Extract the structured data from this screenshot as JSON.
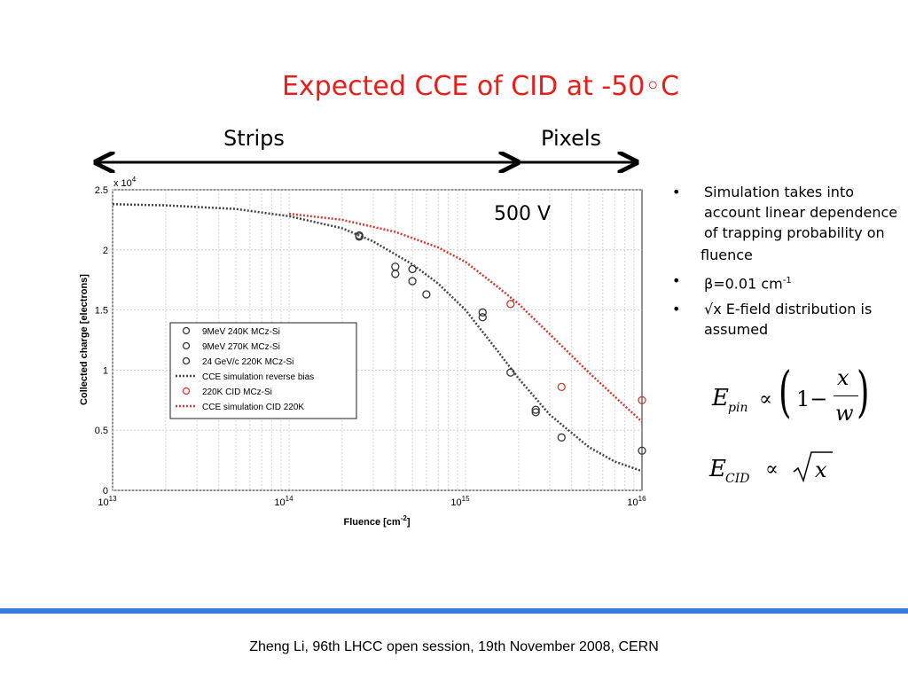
{
  "slide": {
    "title": "Expected CCE of CID at -50◦C",
    "strips_label": "Strips",
    "pixels_label": "Pixels",
    "annotation": "500 V",
    "footer": "Zheng Li, 96th LHCC open session, 19th November 2008, CERN",
    "accent_color": "#3a7be0",
    "title_color": "#e5201a"
  },
  "bullets": [
    {
      "text": "Simulation takes into account linear dependence of trapping probability on",
      "cont": "fluence"
    },
    {
      "text": "β=0.01 cm",
      "sup": "-1"
    },
    {
      "text": "√x E-field distribution is assumed"
    }
  ],
  "equations": {
    "epin_E": "E",
    "epin_sub": "pin",
    "prop": "∝",
    "one": "1−",
    "num": "x",
    "den": "w",
    "ecid_E": "E",
    "ecid_sub": "CID",
    "sqrt_arg": "x"
  },
  "chart_data": {
    "type": "scatter",
    "xlabel": "Fluence [cm",
    "xlabel_sup": "-2",
    "xlabel_end": "]",
    "ylabel": "Collected charge [electrons]",
    "y_multiplier": "x 10",
    "y_multiplier_exp": "4",
    "x_scale": "log",
    "xlim": [
      10000000000000.0,
      1e+16
    ],
    "ylim": [
      0,
      2.5
    ],
    "grid": true,
    "x_ticks": [
      {
        "base": "10",
        "exp": "13",
        "v": 13
      },
      {
        "base": "10",
        "exp": "14",
        "v": 14
      },
      {
        "base": "10",
        "exp": "15",
        "v": 15
      },
      {
        "base": "10",
        "exp": "16",
        "v": 16
      }
    ],
    "y_ticks": [
      "0",
      "0.5",
      "1",
      "1.5",
      "2",
      "2.5"
    ],
    "y_tick_values": [
      0,
      0.5,
      1,
      1.5,
      2,
      2.5
    ],
    "legend_position": "lower-left",
    "series": [
      {
        "name": "9MeV 240K MCz-Si",
        "kind": "points",
        "color": "#333333",
        "points": [
          [
            250000000000000.0,
            2.11
          ],
          [
            400000000000000.0,
            1.8
          ],
          [
            500000000000000.0,
            1.74
          ],
          [
            600000000000000.0,
            1.63
          ],
          [
            1250000000000000.0,
            1.48
          ],
          [
            2500000000000000.0,
            0.67
          ],
          [
            1e+16,
            0.33
          ]
        ]
      },
      {
        "name": "9MeV 270K MCz-Si",
        "kind": "points",
        "color": "#333333",
        "points": [
          [
            250000000000000.0,
            2.12
          ],
          [
            400000000000000.0,
            1.86
          ],
          [
            500000000000000.0,
            1.84
          ],
          [
            1250000000000000.0,
            1.44
          ],
          [
            1800000000000000.0,
            0.98
          ],
          [
            2500000000000000.0,
            0.65
          ]
        ]
      },
      {
        "name": "24 GeV/c 220K MCz-Si",
        "kind": "points",
        "color": "#333333",
        "points": [
          [
            3500000000000000.0,
            0.44
          ]
        ]
      },
      {
        "name": "CCE simulation reverse bias",
        "kind": "line",
        "color": "#444444",
        "points": [
          [
            10000000000000.0,
            2.38
          ],
          [
            20000000000000.0,
            2.37
          ],
          [
            50000000000000.0,
            2.34
          ],
          [
            100000000000000.0,
            2.28
          ],
          [
            200000000000000.0,
            2.18
          ],
          [
            300000000000000.0,
            2.07
          ],
          [
            500000000000000.0,
            1.88
          ],
          [
            700000000000000.0,
            1.72
          ],
          [
            1000000000000000.0,
            1.5
          ],
          [
            1500000000000000.0,
            1.17
          ],
          [
            2000000000000000.0,
            0.93
          ],
          [
            3000000000000000.0,
            0.63
          ],
          [
            5000000000000000.0,
            0.36
          ],
          [
            7000000000000000.0,
            0.24
          ],
          [
            1e+16,
            0.16
          ]
        ]
      },
      {
        "name": "220K CID MCz-Si",
        "kind": "points",
        "color": "#cc3b30",
        "points": [
          [
            1800000000000000.0,
            1.55
          ],
          [
            3500000000000000.0,
            0.86
          ],
          [
            1e+16,
            0.75
          ]
        ]
      },
      {
        "name": "CCE simulation CID 220K",
        "kind": "line",
        "color": "#cc3b30",
        "points": [
          [
            100000000000000.0,
            2.3
          ],
          [
            200000000000000.0,
            2.25
          ],
          [
            400000000000000.0,
            2.15
          ],
          [
            700000000000000.0,
            2.02
          ],
          [
            1000000000000000.0,
            1.9
          ],
          [
            1500000000000000.0,
            1.7
          ],
          [
            2000000000000000.0,
            1.55
          ],
          [
            3000000000000000.0,
            1.3
          ],
          [
            5000000000000000.0,
            0.98
          ],
          [
            7000000000000000.0,
            0.78
          ],
          [
            1e+16,
            0.57
          ]
        ]
      }
    ]
  }
}
